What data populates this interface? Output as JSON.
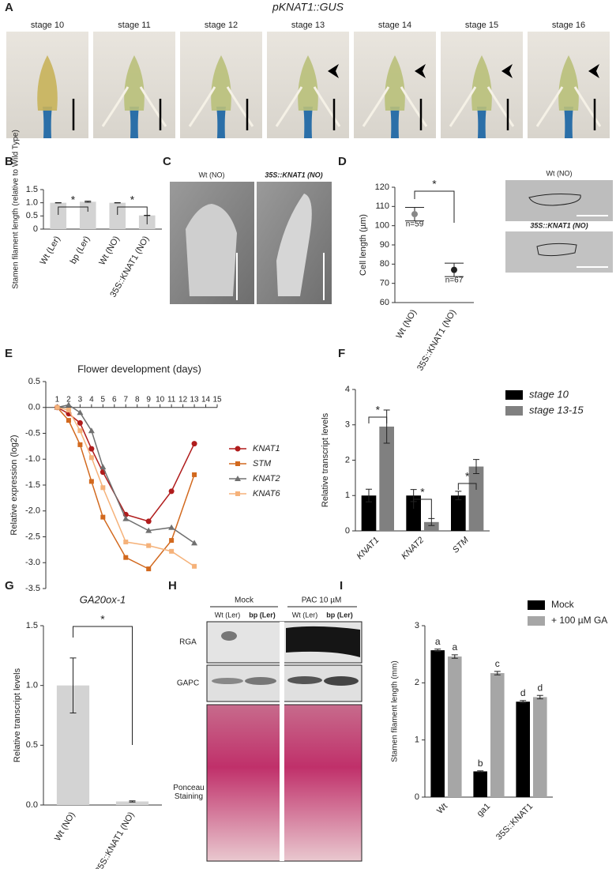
{
  "figure": {
    "panel_labels": [
      "A",
      "B",
      "C",
      "D",
      "E",
      "F",
      "G",
      "H",
      "I"
    ],
    "panel_a": {
      "title": "pKNAT1::GUS",
      "stages": [
        "stage 10",
        "stage 11",
        "stage 12",
        "stage 13",
        "stage 14",
        "stage 15",
        "stage 16"
      ]
    },
    "panel_c": {
      "labels": [
        "Wt (NO)",
        "35S::KNAT1 (NO)"
      ]
    },
    "panel_d": {
      "labels": [
        "Wt (NO)",
        "35S::KNAT1 (NO)"
      ]
    },
    "panel_h": {
      "treatments": [
        "Mock",
        "PAC 10 µM"
      ],
      "genotypes": [
        "Wt (Ler)",
        "bp (Ler)",
        "Wt (Ler)",
        "bp (Ler)"
      ],
      "rows": [
        "RGA",
        "GAPC",
        "Ponceau Staining"
      ]
    }
  },
  "chart_data": [
    {
      "type": "bar",
      "ylabel": "Stamen filament length (relative to Wild Type)",
      "categories": [
        "Wt (Ler)",
        "bp (Ler)",
        "Wt (NO)",
        "35S::KNAT1 (NO)"
      ],
      "values": [
        1.0,
        1.04,
        1.0,
        0.52
      ],
      "errors": [
        0.005,
        0.02,
        0.005,
        0.005
      ],
      "color": "#d3d3d3",
      "ylim": [
        0,
        1.5
      ],
      "yticks": [
        0,
        0.5,
        {
          "value": 1,
          "label": "1.0"
        },
        1.5
      ],
      "annotations": [
        "*",
        "*"
      ]
    },
    {
      "type": "dot",
      "ylabel": "Cell length (µm)",
      "categories": [
        "Wt (NO)",
        "35S::KNAT1 (NO)"
      ],
      "values": [
        106,
        77
      ],
      "errors": [
        3.5,
        3.5
      ],
      "point_labels": [
        "n=59",
        "n=67"
      ],
      "colors": [
        "#888888",
        "#222222"
      ],
      "ylim": [
        60,
        120
      ],
      "yticks": [
        60,
        70,
        80,
        90,
        100,
        110,
        120
      ],
      "annotations": [
        "*"
      ]
    },
    {
      "type": "line",
      "title": "Flower development (days)",
      "ylabel": "Relative expression (log2)",
      "x": [
        1,
        2,
        3,
        4,
        5,
        7,
        9,
        11,
        13
      ],
      "xlim": [
        0,
        15
      ],
      "xticks": [
        1,
        2,
        3,
        4,
        5,
        6,
        7,
        8,
        9,
        10,
        11,
        12,
        13,
        14,
        15
      ],
      "ylim": [
        -3.5,
        0.5
      ],
      "yticks": [
        -3.5,
        {
          "value": -3,
          "label": "-3.0"
        },
        -2.5,
        {
          "value": -2,
          "label": "-2.0"
        },
        -1.5,
        {
          "value": -1,
          "label": "-1.0"
        },
        -0.5,
        {
          "value": 0,
          "label": "0.0"
        },
        0.5
      ],
      "series": [
        {
          "name": "KNAT1",
          "color": "#b01c1c",
          "marker": "circle",
          "values": [
            0,
            -0.12,
            -0.3,
            -0.8,
            -1.25,
            -2.07,
            -2.2,
            -1.62,
            -0.7
          ]
        },
        {
          "name": "STM",
          "color": "#d2691e",
          "marker": "square",
          "values": [
            0,
            -0.25,
            -0.72,
            -1.43,
            -2.12,
            -2.9,
            -3.12,
            -2.57,
            -1.3
          ]
        },
        {
          "name": "KNAT2",
          "color": "#707070",
          "marker": "triangle",
          "values": [
            0,
            0.05,
            -0.1,
            -0.45,
            -1.15,
            -2.15,
            -2.38,
            -2.32,
            -2.62
          ]
        },
        {
          "name": "KNAT6",
          "color": "#f5b27a",
          "marker": "square",
          "values": [
            0,
            -0.05,
            -0.45,
            -0.97,
            -1.55,
            -2.6,
            -2.67,
            -2.78,
            -3.07
          ]
        }
      ]
    },
    {
      "type": "bar",
      "ylabel": "Relative transcript levels",
      "categories": [
        "KNAT1",
        "KNAT2",
        "STM"
      ],
      "series": [
        {
          "name": "stage 10",
          "color": "#000000",
          "values": [
            1,
            1,
            1
          ],
          "errors": [
            0.18,
            0.17,
            0.12
          ]
        },
        {
          "name": "stage 13-15",
          "color": "#808080",
          "values": [
            2.95,
            0.25,
            1.82
          ],
          "errors": [
            0.47,
            0.1,
            0.2
          ]
        }
      ],
      "ylim": [
        0,
        4
      ],
      "yticks": [
        0,
        1,
        2,
        3,
        4
      ],
      "annotations": [
        "*",
        "*",
        "*"
      ]
    },
    {
      "type": "bar",
      "title": "GA20ox-1",
      "ylabel": "Relative transcript levels",
      "categories": [
        "Wt (NO)",
        "35S::KNAT1 (NO)"
      ],
      "values": [
        1.0,
        0.03
      ],
      "errors": [
        0.23,
        0.005
      ],
      "color": "#d3d3d3",
      "ylim": [
        0,
        1.5
      ],
      "yticks": [
        {
          "value": 0,
          "label": "0.0"
        },
        0.5,
        {
          "value": 1,
          "label": "1.0"
        },
        1.5
      ],
      "annotations": [
        "*"
      ]
    },
    {
      "type": "bar",
      "ylabel": "Stamen filament length (mm)",
      "categories": [
        "Wt",
        "ga1",
        "35S::KNAT1"
      ],
      "series": [
        {
          "name": "Mock",
          "color": "#000000",
          "values": [
            2.57,
            0.45,
            1.67
          ],
          "errors": [
            0.02,
            0.01,
            0.02
          ],
          "labels": [
            "a",
            "b",
            "d"
          ]
        },
        {
          "name": "+ 100 µM GA",
          "color": "#a6a6a6",
          "values": [
            2.46,
            2.17,
            1.75
          ],
          "errors": [
            0.03,
            0.03,
            0.03
          ],
          "labels": [
            "a",
            "c",
            "d"
          ]
        }
      ],
      "ylim": [
        0,
        3
      ],
      "yticks": [
        0,
        1,
        2,
        3
      ]
    }
  ]
}
